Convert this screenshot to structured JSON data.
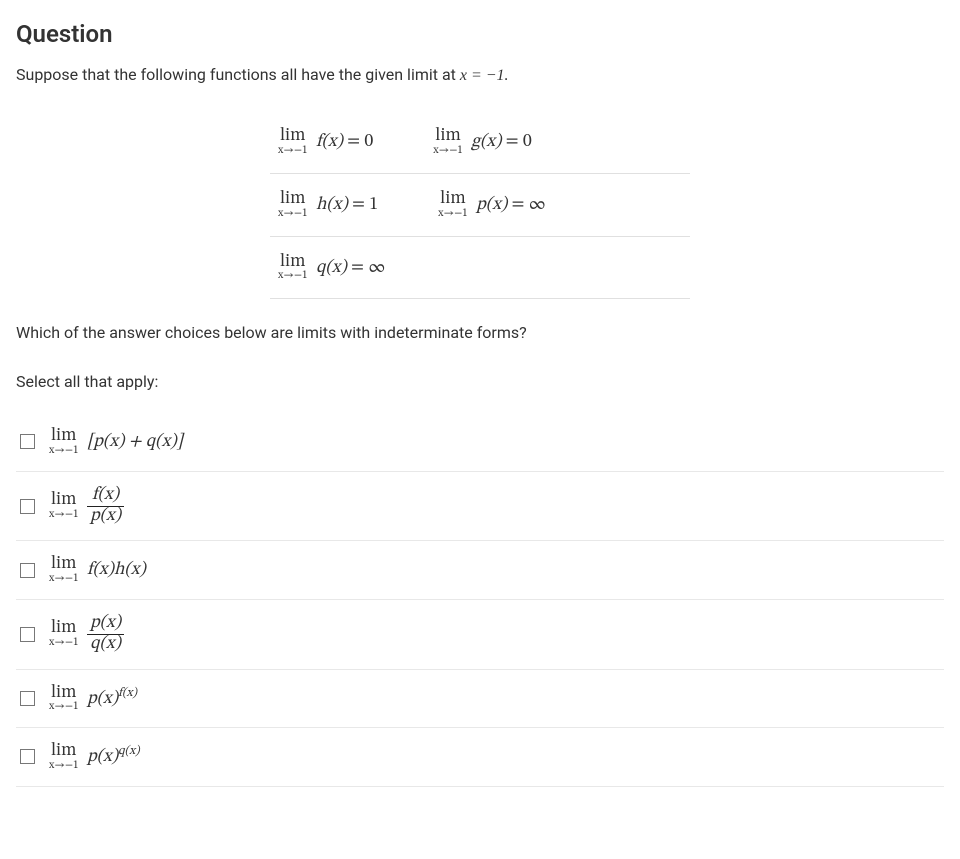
{
  "heading": "Question",
  "prompt_text": "Suppose that the following functions all have the given limit at ",
  "prompt_math": "x = −1.",
  "limits": {
    "approach": "x→−1",
    "rows": [
      {
        "cells": [
          {
            "fn": "f(x)",
            "eq": " = 0"
          },
          {
            "fn": "g(x)",
            "eq": " = 0"
          }
        ]
      },
      {
        "cells": [
          {
            "fn": "h(x)",
            "eq": " = 1"
          },
          {
            "fn": "p(x)",
            "eq": " = ∞"
          }
        ]
      },
      {
        "cells": [
          {
            "fn": "q(x)",
            "eq": " = ∞"
          }
        ]
      }
    ]
  },
  "instruction": "Which of the answer choices below are limits with indeterminate forms?",
  "select_label": "Select all that apply:",
  "choices": [
    {
      "id": "c1",
      "type": "plain",
      "body": "[p(x) + q(x)]"
    },
    {
      "id": "c2",
      "type": "frac",
      "num": "f(x)",
      "den": "p(x)"
    },
    {
      "id": "c3",
      "type": "plain",
      "body": "f(x)h(x)"
    },
    {
      "id": "c4",
      "type": "frac",
      "num": "p(x)",
      "den": "q(x)"
    },
    {
      "id": "c5",
      "type": "power",
      "base": "p(x)",
      "exp": "f(x)"
    },
    {
      "id": "c6",
      "type": "power",
      "base": "p(x)",
      "exp": "q(x)"
    }
  ],
  "colors": {
    "text": "#333333",
    "border": "#e0e0e0",
    "choice_border": "#e8e8e8",
    "checkbox_border": "#777777",
    "background": "#ffffff"
  },
  "typography": {
    "body_font": "Segoe UI / system sans",
    "math_font": "Cambria Math / serif",
    "heading_size_pt": 18,
    "body_size_pt": 12,
    "math_size_pt": 13
  }
}
